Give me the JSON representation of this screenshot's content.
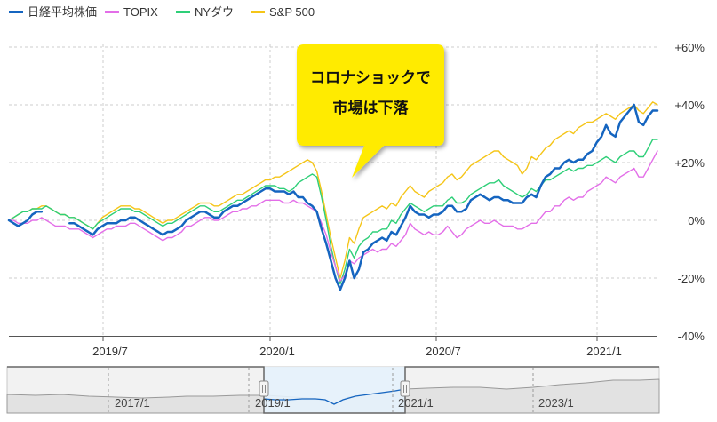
{
  "chart_data": {
    "type": "line",
    "legend_position": "top-left",
    "grid": true,
    "y_unit": "%",
    "ylim": [
      -40,
      60
    ],
    "y_ticks": [
      {
        "value": 60,
        "label": "+60%"
      },
      {
        "value": 40,
        "label": "+40%"
      },
      {
        "value": 20,
        "label": "+20%"
      },
      {
        "value": 0,
        "label": "0%"
      },
      {
        "value": -20,
        "label": "-20%"
      },
      {
        "value": -40,
        "label": "-40%"
      }
    ],
    "x_ticks": [
      "2019/7",
      "2020/1",
      "2020/7",
      "2021/1"
    ],
    "series": [
      {
        "name": "日経平均株価",
        "color": "#1565c0",
        "values": [
          0,
          -1,
          -2,
          -1,
          0,
          2,
          3,
          3,
          null,
          null,
          null,
          null,
          null,
          -1,
          -1,
          -2,
          -3,
          -4,
          -5,
          -3,
          -2,
          -1,
          -1,
          -1,
          0,
          0,
          1,
          1,
          0,
          -1,
          -2,
          -3,
          -4,
          -5,
          -4,
          -4,
          -3,
          -2,
          0,
          1,
          2,
          3,
          3,
          2,
          1,
          1,
          3,
          4,
          5,
          5,
          6,
          7,
          8,
          9,
          10,
          11,
          11,
          10,
          10,
          10,
          9,
          10,
          8,
          8,
          6,
          5,
          3,
          -3,
          -8,
          -14,
          -20,
          -24,
          -20,
          -14,
          -20,
          -17,
          -11,
          -10,
          -8,
          -7,
          -6,
          -7,
          -4,
          -5,
          -2,
          1,
          5,
          3,
          2,
          2,
          1,
          2,
          2,
          3,
          5,
          5,
          3,
          3,
          4,
          7,
          8,
          9,
          8,
          7,
          8,
          8,
          7,
          7,
          6,
          6,
          6,
          8,
          9,
          8,
          12,
          15,
          16,
          18,
          18,
          20,
          21,
          20,
          21,
          21,
          23,
          24,
          27,
          29,
          33,
          30,
          29,
          34,
          36,
          38,
          40,
          34,
          33,
          36,
          38,
          38
        ]
      },
      {
        "name": "TOPIX",
        "color": "#e36ee8",
        "values": [
          0,
          0,
          -1,
          -1,
          -1,
          0,
          0,
          1,
          0,
          -1,
          -2,
          -2,
          -2,
          -3,
          -3,
          -3,
          -4,
          -5,
          -6,
          -5,
          -4,
          -3,
          -3,
          -2,
          -2,
          -2,
          -1,
          -1,
          -2,
          -3,
          -4,
          -5,
          -6,
          -7,
          -6,
          -6,
          -5,
          -4,
          -2,
          -2,
          -1,
          0,
          1,
          1,
          0,
          0,
          1,
          2,
          3,
          3,
          4,
          4,
          5,
          5,
          6,
          7,
          7,
          7,
          7,
          6,
          6,
          7,
          6,
          6,
          5,
          4,
          3,
          -1,
          -5,
          -11,
          -16,
          -21,
          -19,
          -14,
          -15,
          -13,
          -12,
          -11,
          -10,
          -11,
          -10,
          -10,
          -8,
          -9,
          -7,
          -5,
          -1,
          -3,
          -4,
          -5,
          -4,
          -5,
          -5,
          -4,
          -2,
          -4,
          -6,
          -5,
          -3,
          -2,
          -1,
          0,
          -1,
          -1,
          0,
          -1,
          -2,
          -2,
          -2,
          -3,
          -3,
          -2,
          -1,
          -1,
          1,
          3,
          3,
          5,
          5,
          7,
          8,
          7,
          8,
          8,
          10,
          11,
          12,
          13,
          15,
          14,
          13,
          15,
          16,
          17,
          18,
          15,
          15,
          18,
          21,
          24
        ]
      },
      {
        "name": "NYダウ",
        "color": "#2ecf78",
        "values": [
          0,
          1,
          2,
          3,
          3,
          4,
          4,
          4,
          5,
          4,
          3,
          2,
          2,
          1,
          1,
          0,
          -1,
          -2,
          -3,
          -1,
          0,
          1,
          2,
          3,
          4,
          4,
          4,
          3,
          3,
          2,
          1,
          0,
          -1,
          -2,
          -1,
          -1,
          0,
          1,
          2,
          3,
          4,
          5,
          5,
          4,
          3,
          3,
          4,
          5,
          6,
          7,
          7,
          8,
          9,
          10,
          11,
          12,
          12,
          12,
          11,
          11,
          10,
          11,
          13,
          14,
          15,
          16,
          15,
          8,
          0,
          -9,
          -16,
          -22,
          -17,
          -10,
          -13,
          -9,
          -7,
          -6,
          -4,
          -4,
          -3,
          -3,
          0,
          -1,
          2,
          4,
          6,
          5,
          4,
          3,
          4,
          5,
          5,
          5,
          7,
          8,
          6,
          6,
          7,
          9,
          10,
          11,
          12,
          13,
          13,
          14,
          12,
          11,
          10,
          9,
          8,
          9,
          11,
          10,
          12,
          14,
          14,
          15,
          16,
          17,
          18,
          17,
          18,
          18,
          19,
          19,
          20,
          21,
          22,
          21,
          20,
          22,
          23,
          24,
          24,
          22,
          22,
          25,
          28,
          28
        ]
      },
      {
        "name": "S&P 500",
        "color": "#f5c518",
        "values": [
          0,
          1,
          2,
          3,
          3,
          4,
          4,
          5,
          5,
          4,
          3,
          2,
          2,
          1,
          1,
          0,
          -1,
          -2,
          -3,
          -1,
          1,
          2,
          3,
          4,
          5,
          5,
          5,
          4,
          4,
          3,
          2,
          1,
          0,
          -1,
          0,
          0,
          1,
          2,
          3,
          4,
          5,
          6,
          6,
          6,
          5,
          5,
          6,
          7,
          8,
          9,
          9,
          10,
          11,
          12,
          13,
          14,
          14,
          15,
          15,
          16,
          17,
          18,
          19,
          20,
          21,
          20,
          17,
          10,
          2,
          -6,
          -13,
          -20,
          -14,
          -6,
          -8,
          -3,
          1,
          2,
          3,
          4,
          5,
          4,
          6,
          5,
          8,
          10,
          12,
          10,
          9,
          8,
          10,
          11,
          12,
          13,
          15,
          16,
          14,
          15,
          17,
          19,
          20,
          21,
          22,
          23,
          24,
          24,
          22,
          21,
          20,
          19,
          16,
          18,
          22,
          21,
          23,
          25,
          26,
          28,
          29,
          30,
          31,
          30,
          32,
          33,
          34,
          34,
          35,
          36,
          37,
          36,
          35,
          37,
          38,
          39,
          40,
          38,
          37,
          39,
          41,
          40
        ]
      }
    ],
    "callout": {
      "line1": "コロナショックで",
      "line2": "市場は下落",
      "background": "#ffeb00"
    },
    "navigator": {
      "labels": [
        "2017/1",
        "2019/1",
        "2021/1",
        "2023/1"
      ]
    }
  }
}
